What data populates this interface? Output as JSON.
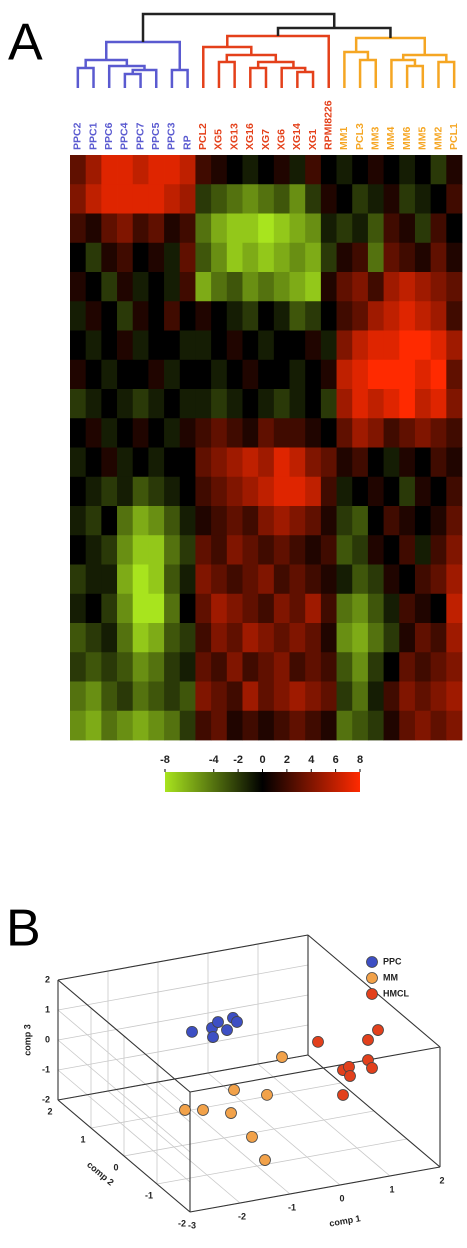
{
  "chart_data": [
    {
      "type": "heatmap",
      "panel_label": "A",
      "columns": [
        "PPC2",
        "PPC1",
        "PPC6",
        "PPC4",
        "PPC7",
        "PPC5",
        "PPC3",
        "RP",
        "PCL2",
        "XG5",
        "XG13",
        "XG16",
        "XG7",
        "XG6",
        "XG14",
        "XG1",
        "RPMI8226",
        "MM1",
        "PCL3",
        "MM3",
        "MM4",
        "MM6",
        "MM5",
        "MM2",
        "PCL1"
      ],
      "column_colors": [
        "#5a5ad0",
        "#5a5ad0",
        "#5a5ad0",
        "#5a5ad0",
        "#5a5ad0",
        "#5a5ad0",
        "#5a5ad0",
        "#5a5ad0",
        "#e4401a",
        "#e4401a",
        "#e4401a",
        "#e4401a",
        "#e4401a",
        "#e4401a",
        "#e4401a",
        "#e4401a",
        "#e4401a",
        "#f5a623",
        "#f5a623",
        "#f5a623",
        "#f5a623",
        "#f5a623",
        "#f5a623",
        "#f5a623",
        "#f5a623"
      ],
      "values": [
        [
          3,
          5,
          7,
          7,
          6,
          7,
          7,
          6,
          2,
          1,
          0,
          -1,
          0,
          1,
          -1,
          2,
          0,
          -1,
          0,
          1,
          0,
          -1,
          0,
          -2,
          1
        ],
        [
          4,
          6,
          7,
          7,
          7,
          7,
          6,
          5,
          -2,
          -3,
          -4,
          -5,
          -4,
          -3,
          -5,
          -2,
          1,
          0,
          -2,
          -1,
          1,
          -2,
          -1,
          0,
          2
        ],
        [
          2,
          1,
          3,
          4,
          2,
          3,
          1,
          2,
          -4,
          -6,
          -7,
          -7,
          -8,
          -7,
          -6,
          -5,
          -1,
          -2,
          -1,
          -3,
          2,
          1,
          -2,
          2,
          0
        ],
        [
          0,
          -2,
          1,
          2,
          0,
          1,
          -1,
          3,
          -3,
          -5,
          -7,
          -6,
          -7,
          -6,
          -5,
          -6,
          -2,
          1,
          2,
          -4,
          3,
          2,
          1,
          3,
          1
        ],
        [
          1,
          0,
          -2,
          1,
          -1,
          0,
          -1,
          2,
          -6,
          -4,
          -3,
          -5,
          -4,
          -5,
          -6,
          -7,
          1,
          3,
          4,
          2,
          5,
          6,
          5,
          4,
          3
        ],
        [
          -1,
          1,
          0,
          -2,
          1,
          0,
          2,
          0,
          1,
          0,
          -1,
          -2,
          0,
          -1,
          -3,
          -2,
          0,
          2,
          3,
          5,
          6,
          7,
          6,
          5,
          2
        ],
        [
          0,
          -1,
          0,
          1,
          -1,
          0,
          0,
          -1,
          -1,
          0,
          1,
          0,
          -1,
          0,
          0,
          1,
          -1,
          4,
          6,
          7,
          7,
          8,
          8,
          7,
          5
        ],
        [
          1,
          0,
          -1,
          0,
          0,
          1,
          -1,
          0,
          0,
          -1,
          0,
          1,
          0,
          0,
          -1,
          0,
          1,
          6,
          7,
          8,
          8,
          8,
          7,
          8,
          3
        ],
        [
          -2,
          -1,
          0,
          -1,
          -2,
          -1,
          0,
          -1,
          -1,
          -2,
          -1,
          0,
          -1,
          -2,
          -1,
          0,
          -2,
          5,
          7,
          6,
          7,
          8,
          6,
          7,
          4
        ],
        [
          0,
          1,
          -1,
          0,
          1,
          0,
          -1,
          1,
          2,
          3,
          2,
          1,
          3,
          2,
          2,
          1,
          0,
          3,
          5,
          4,
          2,
          3,
          4,
          3,
          2
        ],
        [
          -1,
          0,
          1,
          -1,
          0,
          -1,
          0,
          0,
          3,
          4,
          5,
          6,
          5,
          7,
          6,
          4,
          3,
          1,
          2,
          0,
          -1,
          1,
          0,
          2,
          1
        ],
        [
          0,
          -1,
          -2,
          -1,
          -3,
          -2,
          -1,
          0,
          2,
          3,
          4,
          5,
          6,
          7,
          7,
          6,
          2,
          -1,
          0,
          1,
          0,
          -2,
          1,
          0,
          2
        ],
        [
          -1,
          -2,
          0,
          -4,
          -6,
          -5,
          -3,
          -1,
          1,
          2,
          3,
          2,
          4,
          5,
          4,
          3,
          1,
          -2,
          -3,
          0,
          2,
          1,
          0,
          1,
          3
        ],
        [
          0,
          -1,
          -2,
          -5,
          -7,
          -7,
          -4,
          -2,
          3,
          2,
          4,
          3,
          2,
          3,
          2,
          1,
          2,
          -3,
          -2,
          1,
          0,
          2,
          -1,
          2,
          4
        ],
        [
          -2,
          -1,
          -1,
          -6,
          -8,
          -7,
          -3,
          -1,
          4,
          3,
          2,
          3,
          4,
          2,
          3,
          2,
          1,
          -1,
          -3,
          -2,
          1,
          0,
          2,
          3,
          5
        ],
        [
          -1,
          0,
          -2,
          -5,
          -8,
          -8,
          -4,
          0,
          3,
          5,
          4,
          3,
          2,
          4,
          3,
          5,
          2,
          -4,
          -5,
          -3,
          -1,
          2,
          1,
          0,
          6
        ],
        [
          -3,
          -2,
          -1,
          -4,
          -7,
          -6,
          -3,
          -2,
          2,
          4,
          3,
          5,
          4,
          3,
          4,
          3,
          1,
          -5,
          -6,
          -4,
          -2,
          1,
          3,
          2,
          5
        ],
        [
          -2,
          -3,
          -2,
          -3,
          -5,
          -4,
          -2,
          -1,
          3,
          2,
          4,
          2,
          3,
          4,
          2,
          3,
          2,
          -3,
          -5,
          -2,
          0,
          3,
          2,
          3,
          4
        ],
        [
          -4,
          -5,
          -3,
          -2,
          -4,
          -3,
          -2,
          -3,
          4,
          3,
          2,
          5,
          3,
          4,
          5,
          4,
          3,
          -2,
          -4,
          -1,
          2,
          4,
          3,
          4,
          5
        ],
        [
          -5,
          -6,
          -4,
          -5,
          -6,
          -5,
          -4,
          -2,
          2,
          3,
          1,
          2,
          1,
          2,
          3,
          2,
          1,
          -4,
          -3,
          -2,
          1,
          3,
          4,
          3,
          4
        ]
      ],
      "zlim": [
        -8,
        8
      ],
      "zticks": [
        -8,
        -4,
        -2,
        0,
        2,
        4,
        6,
        8
      ],
      "colormap": [
        "#a8e41e",
        "#000000",
        "#ff2a00"
      ]
    },
    {
      "type": "scatter3d",
      "panel_label": "B",
      "xlabel": "comp 1",
      "ylabel": "comp 2",
      "zlabel": "comp 3",
      "xlim": [
        -3,
        2
      ],
      "ylim": [
        -2,
        2
      ],
      "zlim": [
        -2,
        2
      ],
      "xticks": [
        -3,
        -2,
        -1,
        0,
        1,
        2
      ],
      "yticks": [
        -2,
        -1,
        0,
        1,
        2
      ],
      "zticks": [
        -2,
        -1,
        0,
        1,
        2
      ],
      "grid": true,
      "series": [
        {
          "name": "PPC",
          "color": "#3d4fc4",
          "x": [
            -1.64,
            -1.24,
            -1.12,
            -0.82,
            -1.22,
            -0.94,
            -0.74
          ],
          "y": [
            0,
            0,
            0,
            0,
            0,
            0,
            0
          ],
          "z": [
            1.73,
            1.74,
            1.9,
            1.95,
            1.43,
            1.58,
            1.79
          ]
        },
        {
          "name": "MM",
          "color": "#f2a24a",
          "x": [
            0.16,
            -0.8,
            -0.14,
            -1.78,
            -1.42,
            -0.86,
            -1.1,
            -0.84
          ],
          "y": [
            0,
            0,
            0,
            0,
            0,
            0,
            -1,
            -1
          ],
          "z": [
            0.35,
            -0.46,
            -0.82,
            -0.83,
            -0.94,
            -1.21,
            -1.0,
            -1.85
          ]
        },
        {
          "name": "HMCL",
          "color": "#e2401c",
          "x": [
            0.88,
            1.75,
            1.55,
            1.55,
            1.38,
            1.5,
            1.52,
            1.38,
            1.63
          ],
          "y": [
            0,
            -0.5,
            -0.5,
            -0.5,
            0,
            0,
            0,
            0,
            -0.5
          ],
          "z": [
            0.64,
            1.24,
            0.97,
            0.3,
            -0.45,
            -0.38,
            -0.69,
            -1.28,
            0.01
          ]
        }
      ]
    }
  ]
}
